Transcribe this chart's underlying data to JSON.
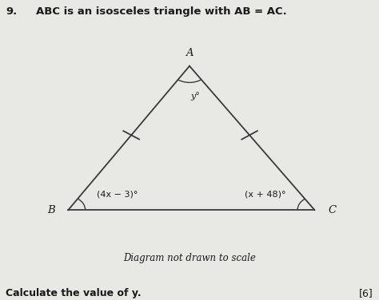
{
  "question_number": "9.",
  "question_text": "ABC is an isosceles triangle with AB = AC.",
  "vertex_A": [
    0.5,
    0.78
  ],
  "vertex_B": [
    0.18,
    0.3
  ],
  "vertex_C": [
    0.83,
    0.3
  ],
  "label_A": "A",
  "label_B": "B",
  "label_C": "C",
  "angle_A_label": "y°",
  "angle_B_label": "(4x − 3)°",
  "angle_C_label": "(x + 48)°",
  "caption": "Diagram not drawn to scale",
  "bottom_text": "Calculate the value of y.",
  "marks": "[6]",
  "bg_color": "#e8e8e4",
  "line_color": "#3a3a3a",
  "text_color": "#1a1a1a",
  "tick_mark_color": "#3a3a3a",
  "font_size_question": 9.5,
  "font_size_labels": 9.5,
  "font_size_angles": 8,
  "font_size_caption": 8.5,
  "font_size_bottom": 9
}
